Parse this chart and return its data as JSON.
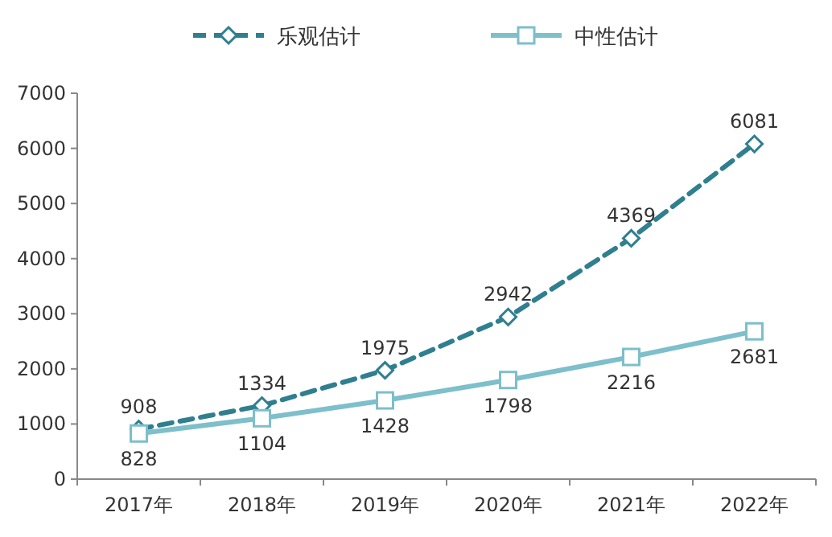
{
  "chart_data": {
    "type": "line",
    "categories": [
      "2017年",
      "2018年",
      "2019年",
      "2020年",
      "2021年",
      "2022年"
    ],
    "series": [
      {
        "name": "乐观估计",
        "color": "#2f7f8f",
        "values": [
          908,
          1334,
          1975,
          2942,
          4369,
          6081
        ],
        "marker": "diamond",
        "line_style": "dashed"
      },
      {
        "name": "中性估计",
        "color": "#7dbfcb",
        "values": [
          828,
          1104,
          1428,
          1798,
          2216,
          2681
        ],
        "marker": "square",
        "line_style": "solid"
      }
    ],
    "ylim": [
      0,
      7000
    ],
    "yticks": [
      0,
      1000,
      2000,
      3000,
      4000,
      5000,
      6000,
      7000
    ],
    "data_labels": true,
    "legend": "top"
  }
}
